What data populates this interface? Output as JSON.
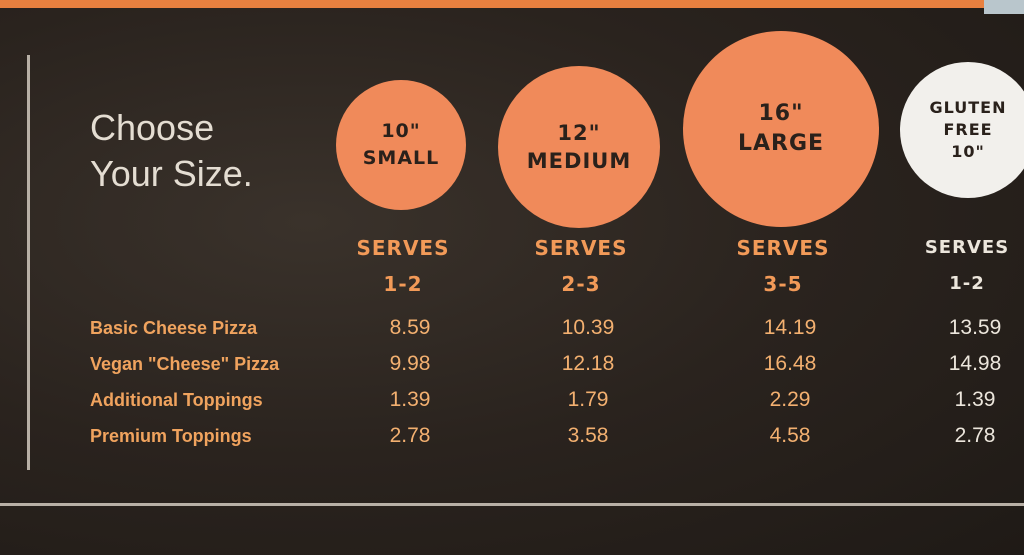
{
  "title": [
    "Choose",
    "Your Size."
  ],
  "sizes": [
    {
      "inch": "10\"",
      "name": "SMALL",
      "serves": "SERVES",
      "range": "1-2"
    },
    {
      "inch": "12\"",
      "name": "MEDIUM",
      "serves": "SERVES",
      "range": "2-3"
    },
    {
      "inch": "16\"",
      "name": "LARGE",
      "serves": "SERVES",
      "range": "3-5"
    },
    {
      "lines": [
        "GLUTEN",
        "FREE",
        "10\""
      ],
      "serves": "SERVES",
      "range": "1-2"
    }
  ],
  "rows": [
    {
      "label": "Basic Cheese Pizza",
      "prices": [
        "8.59",
        "10.39",
        "14.19",
        "13.59"
      ]
    },
    {
      "label": "Vegan \"Cheese\" Pizza",
      "prices": [
        "9.98",
        "12.18",
        "16.48",
        "14.98"
      ]
    },
    {
      "label": "Additional Toppings",
      "prices": [
        "1.39",
        "1.79",
        "2.29",
        "1.39"
      ]
    },
    {
      "label": "Premium Toppings",
      "prices": [
        "2.78",
        "3.58",
        "4.58",
        "2.78"
      ]
    }
  ],
  "colors": {
    "circle": "#f08a5a",
    "gluten_circle": "#f2f0ec",
    "background": "#2b241f",
    "text_orange": "#f0a35e"
  }
}
